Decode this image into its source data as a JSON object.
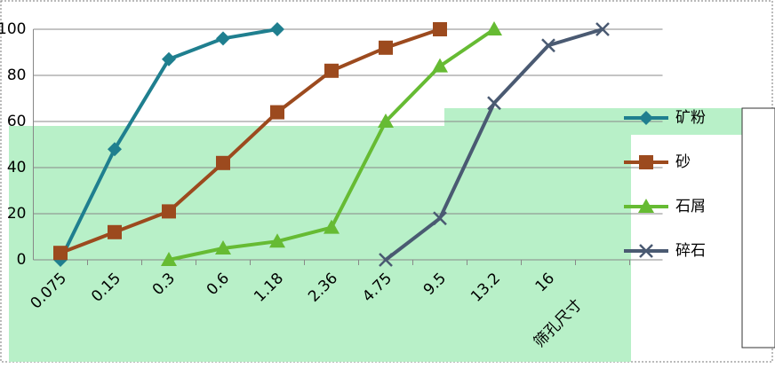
{
  "chart_data": {
    "type": "line",
    "x_title": "筛孔尺寸",
    "categories": [
      "0.075",
      "0.15",
      "0.3",
      "0.6",
      "1.18",
      "2.36",
      "4.75",
      "9.5",
      "13.2",
      "16",
      null
    ],
    "series": [
      {
        "name": "矿粉",
        "color": "#1f7f8f",
        "marker": "diamond",
        "values": [
          0,
          48,
          87,
          96,
          100,
          null,
          null,
          null,
          null,
          null,
          null
        ]
      },
      {
        "name": "砂",
        "color": "#9c4a1e",
        "marker": "square",
        "values": [
          3,
          12,
          21,
          42,
          64,
          82,
          92,
          100,
          null,
          null,
          null
        ]
      },
      {
        "name": "石屑",
        "color": "#66bb33",
        "marker": "triangle",
        "values": [
          null,
          null,
          0,
          5,
          8,
          14,
          60,
          84,
          100,
          null,
          null
        ]
      },
      {
        "name": "碎石",
        "color": "#4a5a72",
        "marker": "x",
        "values": [
          null,
          null,
          null,
          null,
          null,
          null,
          0,
          18,
          68,
          93,
          100
        ]
      }
    ],
    "ylim": [
      0,
      100
    ],
    "yticks": [
      0,
      20,
      40,
      60,
      80,
      100
    ],
    "grid": true,
    "legend": "right"
  }
}
